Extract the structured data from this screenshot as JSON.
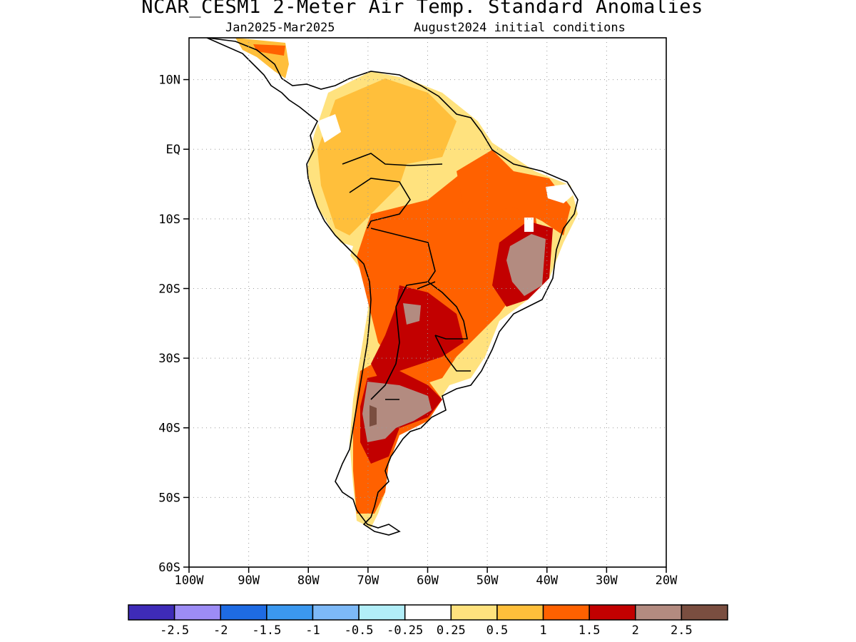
{
  "title": "NCAR_CESM1 2-Meter Air Temp. Standard Anomalies",
  "subtitle_period": "Jan2025-Mar2025",
  "subtitle_init": "August2024 initial conditions",
  "map": {
    "lat_labels": [
      "10N",
      "EQ",
      "10S",
      "20S",
      "30S",
      "40S",
      "50S",
      "60S"
    ],
    "lat_values": [
      10,
      0,
      -10,
      -20,
      -30,
      -40,
      -50,
      -60
    ],
    "lon_labels": [
      "100W",
      "90W",
      "80W",
      "70W",
      "60W",
      "50W",
      "40W",
      "30W",
      "20W"
    ],
    "lon_values": [
      -100,
      -90,
      -80,
      -70,
      -60,
      -50,
      -40,
      -30,
      -20
    ],
    "lat_range": [
      -60,
      16
    ],
    "lon_range": [
      -100,
      -20
    ]
  },
  "colorbar": {
    "colors": [
      "#3e2bb8",
      "#9d8cf5",
      "#1e6be3",
      "#3b98ef",
      "#7db9f7",
      "#b2eef8",
      "#ffffff",
      "#ffe27e",
      "#ffbf3b",
      "#ff6100",
      "#c20000",
      "#b38b80",
      "#7a4e40"
    ],
    "labels": [
      "-2.5",
      "-2",
      "-1.5",
      "-1",
      "-0.5",
      "-0.25",
      "0.25",
      "0.5",
      "1",
      "1.5",
      "2",
      "2.5"
    ]
  }
}
